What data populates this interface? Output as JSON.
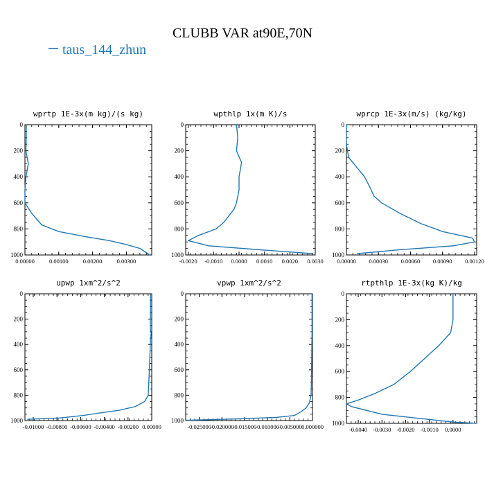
{
  "figure": {
    "title": "CLUBB VAR at90E,70N",
    "legend": {
      "label": "taus_144_zhun",
      "color": "#1f77b4",
      "placement": "top-left"
    }
  },
  "chart_data": [
    {
      "type": "line",
      "title": "wprtp  1E-3x(m kg)/(s kg)",
      "xlim": [
        0.0,
        0.00375
      ],
      "ylim": [
        1000,
        0
      ],
      "xticks": [
        0.0,
        0.001,
        0.002,
        0.003
      ],
      "xticklabels": [
        "0.00000",
        "0.00100",
        "0.00200",
        "0.00300"
      ],
      "yticks": [
        0,
        200,
        400,
        600,
        800,
        1000
      ],
      "series": [
        {
          "name": "taus_144_zhun",
          "x": [
            4e-05,
            4e-05,
            3e-05,
            0.0001,
            3e-05,
            0.0,
            0.0,
            0.0002,
            0.00033,
            0.0005,
            0.001,
            0.0018,
            0.0025,
            0.003,
            0.0034,
            0.0037
          ],
          "y": [
            0,
            100,
            200,
            300,
            400,
            500,
            600,
            680,
            720,
            770,
            820,
            860,
            890,
            920,
            950,
            1000
          ]
        }
      ]
    },
    {
      "type": "line",
      "title": "wpthlp  1x(m K)/s",
      "xlim": [
        -0.0021,
        0.003
      ],
      "ylim": [
        1000,
        0
      ],
      "xticks": [
        -0.002,
        -0.001,
        0.0,
        0.001,
        0.002,
        0.003
      ],
      "xticklabels": [
        "-0.0020",
        "-0.0010",
        "0.0000",
        "0.0010",
        "0.0020",
        "0.0030"
      ],
      "yticks": [
        0,
        200,
        400,
        600,
        800,
        1000
      ],
      "series": [
        {
          "name": "taus_144_zhun",
          "x": [
            -0.0001,
            -5e-05,
            -0.0001,
            0.0001,
            0.0,
            0.0,
            -0.0001,
            -0.0002,
            -0.0004,
            -0.0006,
            -0.0009,
            -0.0016,
            -0.002,
            -0.0012,
            0.0015,
            0.0029
          ],
          "y": [
            0,
            100,
            200,
            290,
            400,
            500,
            600,
            650,
            700,
            750,
            800,
            850,
            890,
            930,
            970,
            990
          ]
        }
      ]
    },
    {
      "type": "line",
      "title": "wprcp  1E-3x(m/s) (kg/kg)",
      "xlim": [
        0.0,
        0.00122
      ],
      "ylim": [
        1000,
        0
      ],
      "xticks": [
        0.0,
        0.0003,
        0.0006,
        0.0009,
        0.0012
      ],
      "xticklabels": [
        "0.00000",
        "0.00030",
        "0.00060",
        "0.00090",
        "0.00120"
      ],
      "yticks": [
        0,
        200,
        400,
        600,
        800,
        1000
      ],
      "series": [
        {
          "name": "taus_144_zhun",
          "x": [
            0.0,
            0.0,
            2e-05,
            0.0001,
            0.00017,
            0.00022,
            0.00026,
            0.00033,
            0.0005,
            0.0007,
            0.0009,
            0.00118,
            0.0012,
            0.001,
            0.0005,
            0.0001
          ],
          "y": [
            0,
            150,
            250,
            330,
            400,
            480,
            550,
            600,
            680,
            760,
            820,
            870,
            900,
            930,
            960,
            990
          ]
        }
      ]
    },
    {
      "type": "line",
      "title": "upwp  1xm^2/s^2",
      "xlim": [
        -0.0107,
        0.0
      ],
      "ylim": [
        1000,
        0
      ],
      "xticks": [
        -0.01,
        -0.008,
        -0.006,
        -0.004,
        -0.002,
        0.0
      ],
      "xticklabels": [
        "-0.01000",
        "-0.00800",
        "-0.00600",
        "-0.00400",
        "-0.00200",
        "0.00000"
      ],
      "yticks": [
        0,
        200,
        400,
        600,
        800,
        1000
      ],
      "series": [
        {
          "name": "taus_144_zhun",
          "x": [
            -0.0001,
            -0.00012,
            -5e-05,
            -0.0001,
            -0.0002,
            -0.0003,
            -0.0006,
            -0.0014,
            -0.0028,
            -0.0044,
            -0.0058,
            -0.0078,
            -0.0105
          ],
          "y": [
            0,
            280,
            310,
            350,
            600,
            800,
            850,
            890,
            920,
            940,
            960,
            980,
            990
          ]
        }
      ]
    },
    {
      "type": "line",
      "title": "vpwp  1xm^2/s^2",
      "xlim": [
        -0.028,
        0.0
      ],
      "ylim": [
        1000,
        0
      ],
      "xticks": [
        -0.025,
        -0.02,
        -0.015,
        -0.01,
        -0.005,
        0.0
      ],
      "xticklabels": [
        "-0.025000",
        "-0.020000",
        "-0.015000",
        "-0.010000",
        "-0.005000",
        "0.000000"
      ],
      "yticks": [
        0,
        200,
        400,
        600,
        800,
        1000
      ],
      "series": [
        {
          "name": "taus_144_zhun",
          "x": [
            -0.0001,
            -0.0001,
            -0.0002,
            -0.0003,
            -0.0007,
            -0.0014,
            -0.0025,
            -0.004,
            -0.008,
            -0.015,
            -0.022,
            -0.028
          ],
          "y": [
            0,
            300,
            600,
            800,
            860,
            900,
            930,
            960,
            975,
            985,
            992,
            998
          ]
        }
      ]
    },
    {
      "type": "line",
      "title": "rtpthlp  1E-3x(kg K)/kg",
      "xlim": [
        -0.0045,
        0.001
      ],
      "ylim": [
        1000,
        0
      ],
      "xticks": [
        -0.004,
        -0.003,
        -0.002,
        -0.001,
        0.0
      ],
      "xticklabels": [
        "-0.0040",
        "-0.0030",
        "-0.0020",
        "-0.0010",
        "0.0000"
      ],
      "yticks": [
        0,
        200,
        400,
        600,
        800,
        1000
      ],
      "series": [
        {
          "name": "taus_144_zhun",
          "x": [
            0.0,
            0.0,
            -0.0001,
            -0.0006,
            -0.0012,
            -0.0018,
            -0.0025,
            -0.0033,
            -0.004,
            -0.0045,
            -0.0043,
            -0.003,
            -0.0015,
            0.0,
            0.001
          ],
          "y": [
            0,
            200,
            300,
            400,
            500,
            600,
            700,
            770,
            820,
            850,
            870,
            930,
            960,
            990,
            1000
          ]
        }
      ]
    }
  ]
}
